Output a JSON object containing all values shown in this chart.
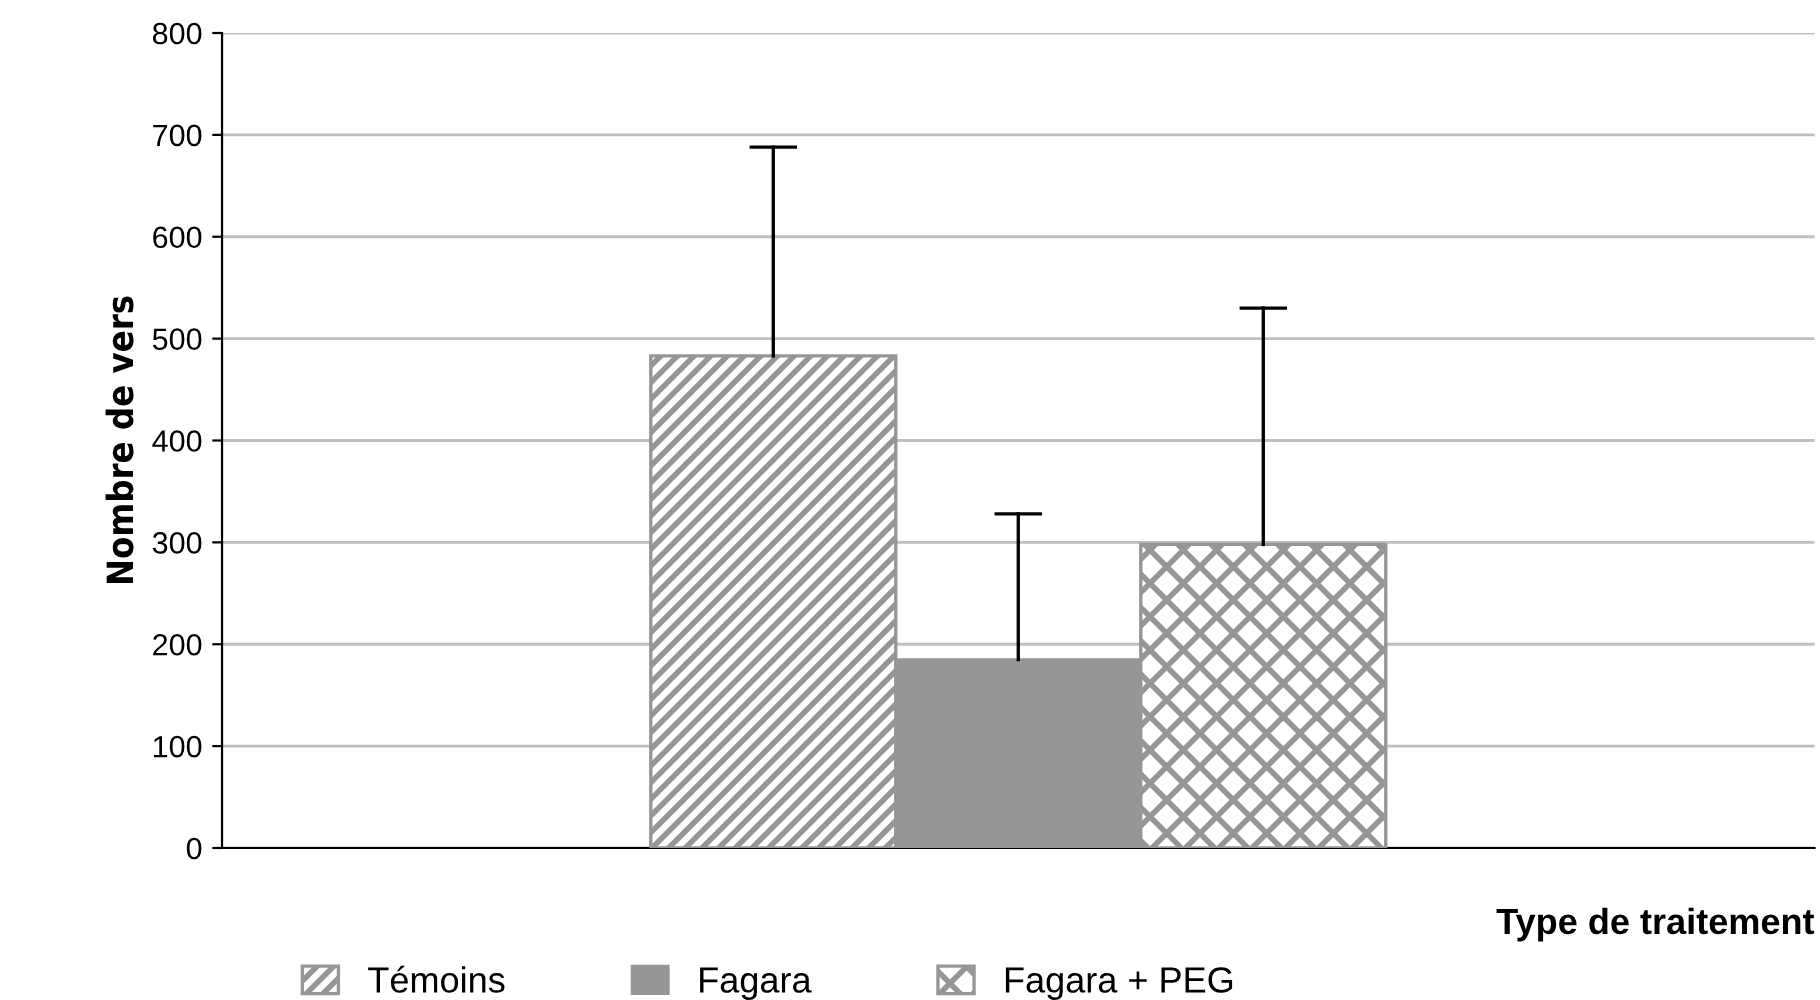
{
  "chart_data": {
    "type": "bar",
    "xlabel": "Type de traitement",
    "ylabel": "Nombre de vers",
    "categories": [
      null
    ],
    "series": [
      {
        "name": "Témoins",
        "color": "#969696",
        "values": [
          483
        ],
        "errors": [
          [
            483,
            688
          ]
        ]
      },
      {
        "name": "Fagara",
        "color": "#969696",
        "values": [
          185
        ],
        "errors": [
          [
            185,
            328
          ]
        ]
      },
      {
        "name": "Fagara + PEG",
        "color": "#969696",
        "values": [
          298
        ],
        "errors": [
          [
            298,
            530
          ]
        ]
      }
    ],
    "ylim": [
      0,
      800
    ],
    "yticks": [
      0,
      100,
      200,
      300,
      400,
      500,
      600,
      700,
      800
    ],
    "grid": "y",
    "legend": "bottom left"
  }
}
